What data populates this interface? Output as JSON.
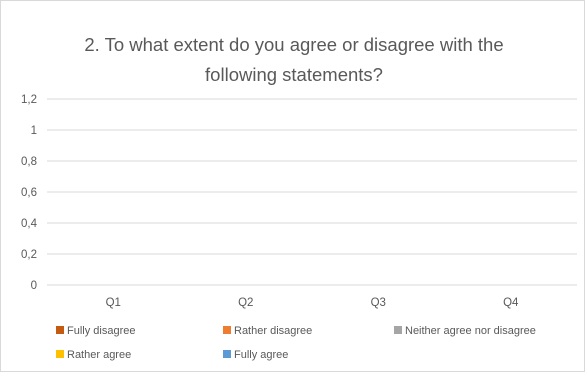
{
  "chart_data": {
    "type": "bar",
    "title_lines": [
      "2. To what extent do you agree or disagree with the",
      "following statements?"
    ],
    "categories": [
      "Q1",
      "Q2",
      "Q3",
      "Q4"
    ],
    "y_ticks": [
      "0",
      "0,2",
      "0,4",
      "0,6",
      "0,8",
      "1",
      "1,2"
    ],
    "ylim": [
      0,
      1.2
    ],
    "grid": true,
    "legend_position": "bottom",
    "series": [
      {
        "name": "Fully disagree",
        "color": "#C55A11",
        "values": [
          0,
          0,
          0,
          0
        ]
      },
      {
        "name": "Rather disagree",
        "color": "#ED7D31",
        "values": [
          0,
          0,
          0,
          0
        ]
      },
      {
        "name": "Neither agree nor disagree",
        "color": "#A5A5A5",
        "values": [
          0,
          0,
          0,
          0
        ]
      },
      {
        "name": "Rather agree",
        "color": "#FFC000",
        "values": [
          0,
          0,
          0,
          0
        ]
      },
      {
        "name": "Fully agree",
        "color": "#5B9BD5",
        "values": [
          0,
          0,
          0,
          0
        ]
      }
    ]
  }
}
